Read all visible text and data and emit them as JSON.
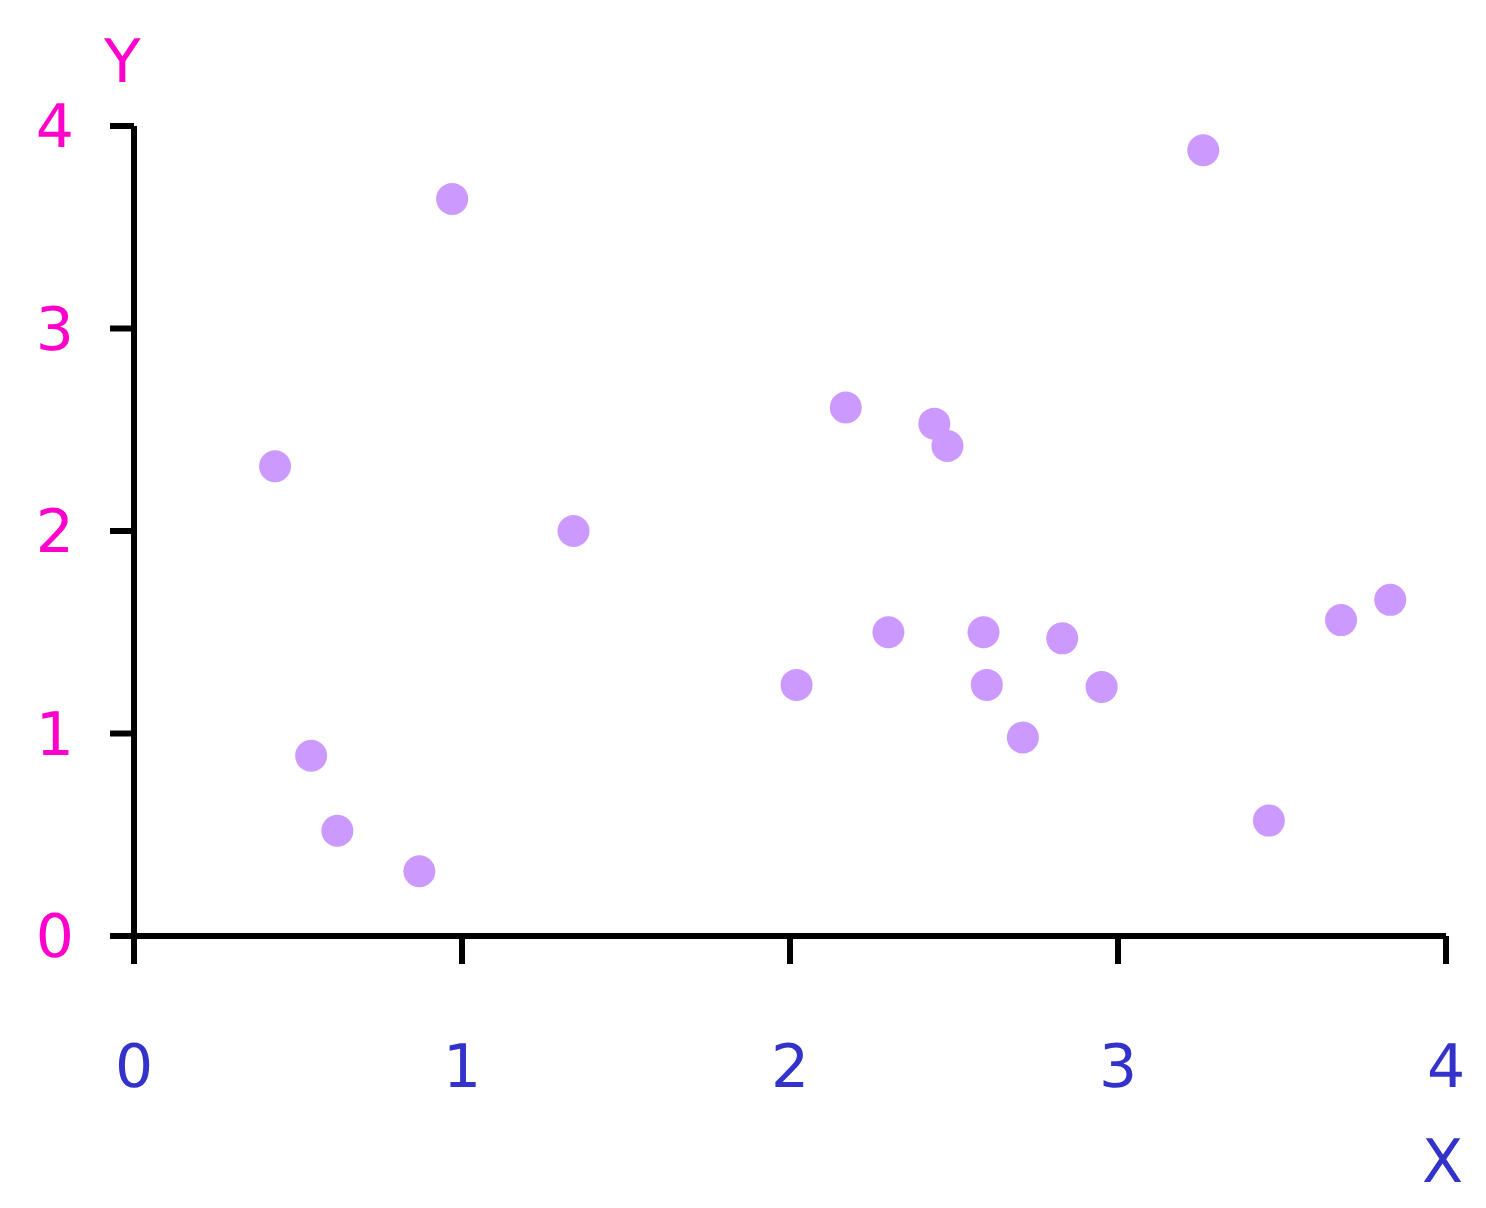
{
  "chart_data": {
    "type": "scatter",
    "xlabel": "X",
    "ylabel": "Y",
    "x": [
      0.43,
      0.54,
      0.62,
      0.87,
      0.97,
      1.34,
      2.02,
      2.17,
      2.3,
      2.44,
      2.48,
      2.59,
      2.6,
      2.71,
      2.83,
      2.95,
      3.26,
      3.46,
      3.68,
      3.83
    ],
    "values": [
      2.32,
      0.89,
      0.52,
      0.32,
      3.64,
      2.0,
      1.24,
      2.61,
      1.5,
      2.53,
      2.42,
      1.5,
      1.24,
      0.98,
      1.47,
      1.23,
      3.88,
      0.57,
      1.56,
      1.66
    ],
    "color": "#cc99ff",
    "marker": "circle",
    "grid": false,
    "legend": false,
    "xlim": [
      0,
      4
    ],
    "xticks": [
      0,
      1,
      2,
      3,
      4
    ],
    "ylim": [
      0,
      4
    ],
    "yticks": [
      0,
      1,
      2,
      3,
      4
    ]
  }
}
